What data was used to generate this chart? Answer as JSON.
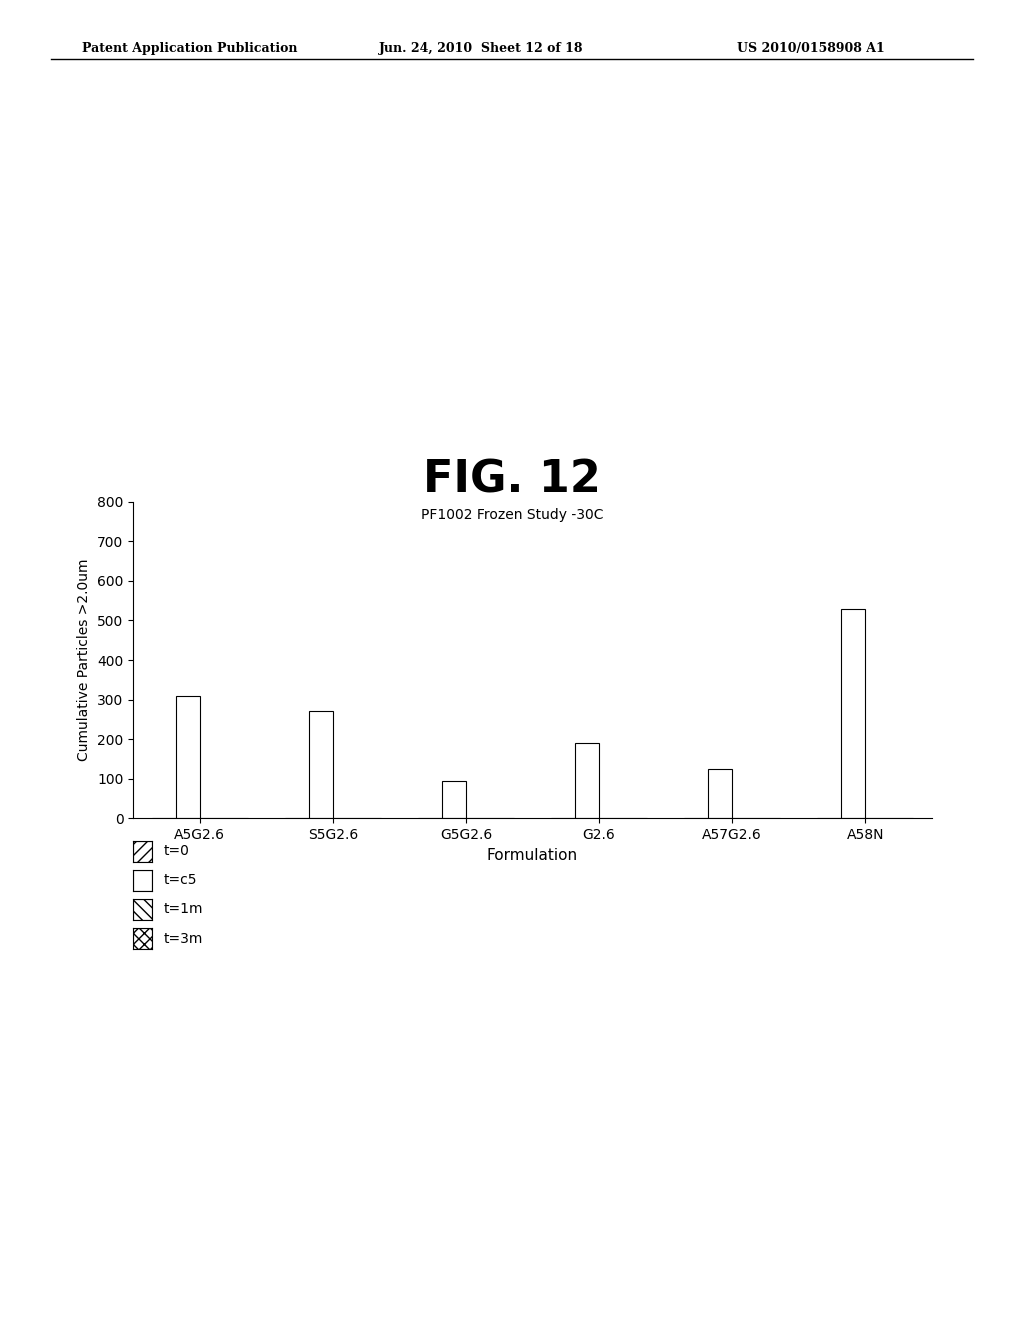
{
  "fig_title": "FIG. 12",
  "subtitle": "PF1002 Frozen Study -30C",
  "xlabel": "Formulation",
  "ylabel": "Cumulative Particles >2.0um",
  "categories": [
    "A5G2.6",
    "S5G2.6",
    "G5G2.6",
    "G2.6",
    "A57G2.6",
    "A58N"
  ],
  "series": {
    "t=0": [
      0,
      0,
      0,
      0,
      0,
      0
    ],
    "t=c5": [
      310,
      270,
      95,
      190,
      125,
      530
    ],
    "t=1m": [
      0,
      0,
      0,
      0,
      0,
      0
    ],
    "t=3m": [
      0,
      0,
      0,
      0,
      0,
      0
    ]
  },
  "series_order": [
    "t=0",
    "t=c5",
    "t=1m",
    "t=3m"
  ],
  "ylim": [
    0,
    800
  ],
  "yticks": [
    0,
    100,
    200,
    300,
    400,
    500,
    600,
    700,
    800
  ],
  "bar_width": 0.18,
  "background_color": "#ffffff",
  "bar_color": "#ffffff",
  "bar_edge_color": "#000000",
  "header_left": "Patent Application Publication",
  "header_center": "Jun. 24, 2010  Sheet 12 of 18",
  "header_right": "US 2010/0158908 A1",
  "legend_hatches": [
    "/",
    "",
    "\\\\",
    "z"
  ],
  "legend_labels": [
    "t=0",
    "t=c5",
    "t=1m",
    "t=3m"
  ]
}
